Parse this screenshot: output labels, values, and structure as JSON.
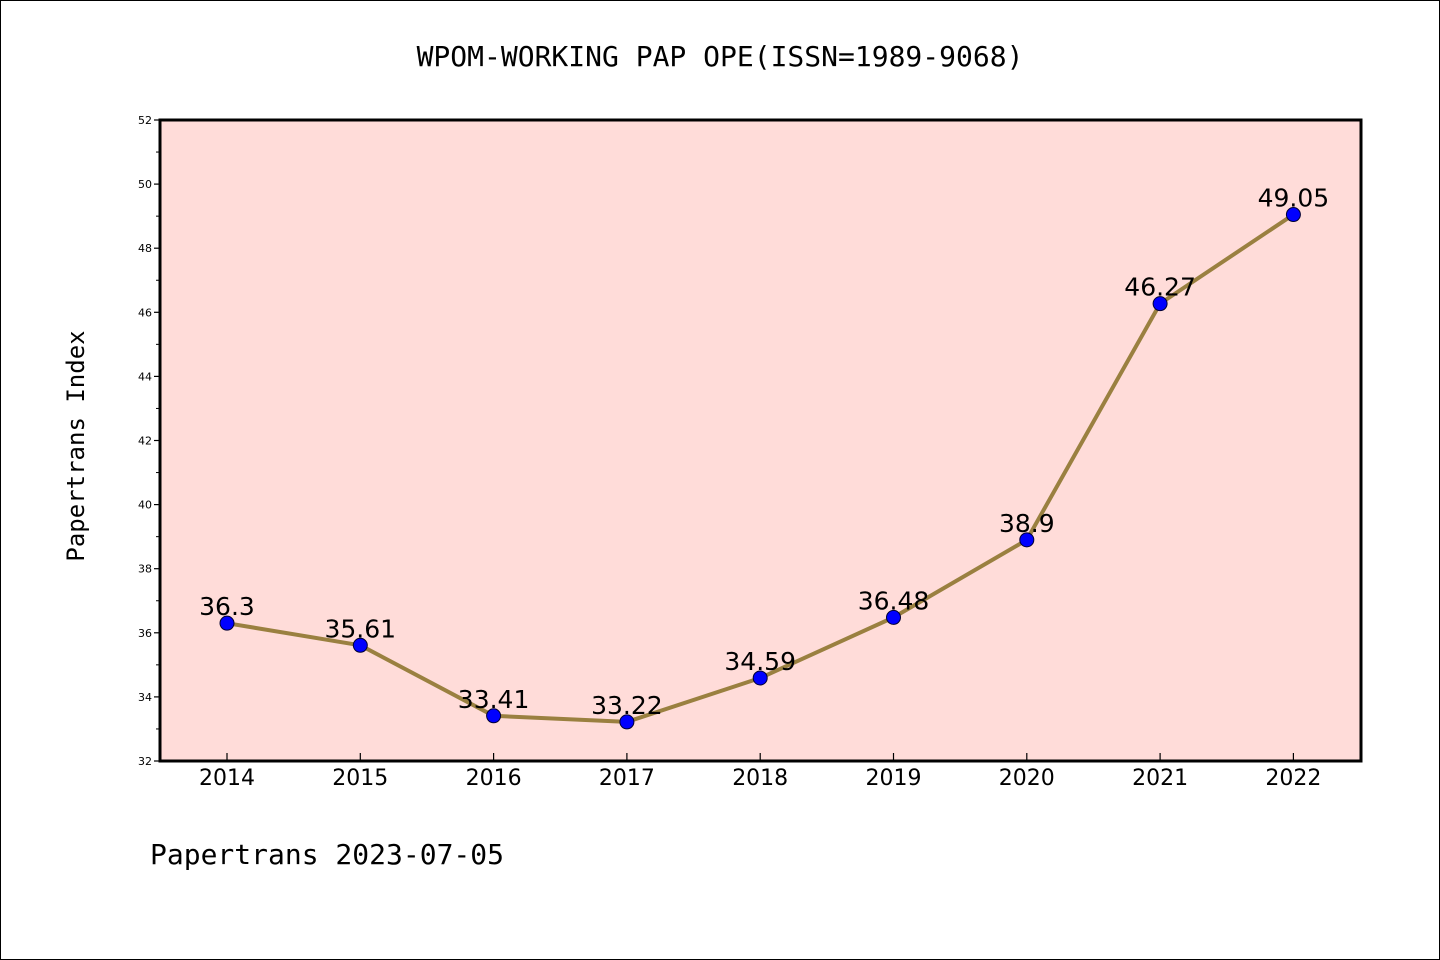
{
  "chart_data": {
    "type": "line",
    "title": "WPOM-WORKING PAP OPE(ISSN=1989-9068)",
    "ylabel": "Papertrans Index",
    "xlabel": "",
    "footer": "Papertrans 2023-07-05",
    "categories": [
      "2014",
      "2015",
      "2016",
      "2017",
      "2018",
      "2019",
      "2020",
      "2021",
      "2022"
    ],
    "series": [
      {
        "values": [
          36.3,
          35.61,
          33.41,
          33.22,
          34.59,
          36.48,
          38.9,
          46.27,
          49.05
        ],
        "labels": [
          "36.3",
          "35.61",
          "33.41",
          "33.22",
          "34.59",
          "36.48",
          "38.9",
          "46.27",
          "49.05"
        ]
      }
    ],
    "ylim": [
      32,
      52
    ],
    "y_ticks": [
      "32",
      "34",
      "36",
      "38",
      "40",
      "42",
      "44",
      "46",
      "48",
      "50",
      "52"
    ],
    "grid": false,
    "legend": "none",
    "colors": {
      "plot_background": "#FFDCD9",
      "line": "#9A8040",
      "marker": "#0000FF",
      "axis": "#000000"
    }
  }
}
